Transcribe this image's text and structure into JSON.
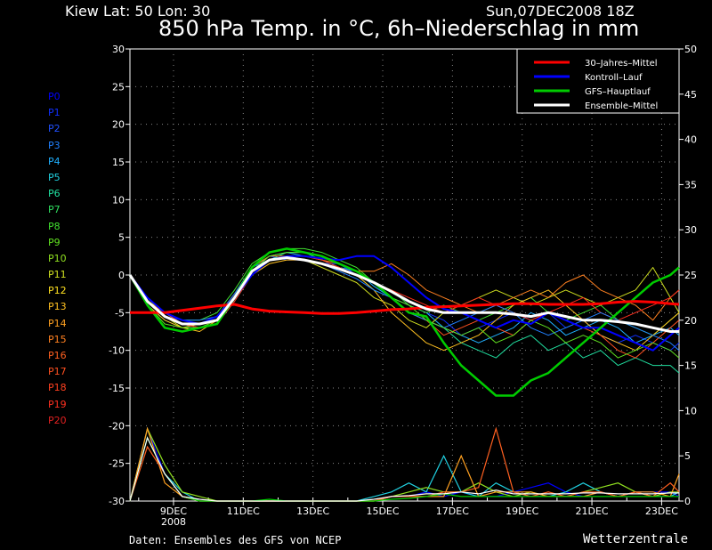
{
  "header": {
    "location": "Kiew   Lat: 50 Lon: 30",
    "date": "Sun,07DEC2008 18Z",
    "title": "850 hPa Temp. in °C, 6h–Niederschlag in mm"
  },
  "footer": {
    "source": "Daten: Ensembles des GFS von NCEP",
    "brand": "Wetterzentrale"
  },
  "members": [
    {
      "label": "P0",
      "color": "#0000ff"
    },
    {
      "label": "P1",
      "color": "#1030ff"
    },
    {
      "label": "P2",
      "color": "#2050ff"
    },
    {
      "label": "P3",
      "color": "#2080ff"
    },
    {
      "label": "P4",
      "color": "#20b0ff"
    },
    {
      "label": "P5",
      "color": "#20d0e0"
    },
    {
      "label": "P6",
      "color": "#20e0a0"
    },
    {
      "label": "P7",
      "color": "#30e060"
    },
    {
      "label": "P8",
      "color": "#40e030"
    },
    {
      "label": "P9",
      "color": "#60e020"
    },
    {
      "label": "P10",
      "color": "#90e020"
    },
    {
      "label": "P11",
      "color": "#d0e020"
    },
    {
      "label": "P12",
      "color": "#ffe020"
    },
    {
      "label": "P13",
      "color": "#ffc020"
    },
    {
      "label": "P14",
      "color": "#ffa020"
    },
    {
      "label": "P15",
      "color": "#ff8020"
    },
    {
      "label": "P16",
      "color": "#ff6020"
    },
    {
      "label": "P17",
      "color": "#ff5020"
    },
    {
      "label": "P18",
      "color": "#ff4020"
    },
    {
      "label": "P19",
      "color": "#ff3020"
    },
    {
      "label": "P20",
      "color": "#e02020"
    }
  ],
  "chart_data": {
    "type": "line",
    "title": "850 hPa Temp. in °C, 6h–Niederschlag in mm",
    "x_ticks": [
      "9DEC",
      "11DEC",
      "13DEC",
      "15DEC",
      "17DEC",
      "19DEC",
      "21DEC",
      "23DEC"
    ],
    "x_tick_year": "2008",
    "x_range_days": [
      7.75,
      23.5
    ],
    "y_left": {
      "ylim": [
        -30,
        30
      ],
      "ticks": [
        -30,
        -25,
        -20,
        -15,
        -10,
        -5,
        0,
        5,
        10,
        15,
        20,
        25,
        30
      ]
    },
    "y_right": {
      "ylim": [
        0,
        50
      ],
      "ticks": [
        0,
        5,
        10,
        15,
        20,
        25,
        30,
        35,
        40,
        45,
        50
      ]
    },
    "grid": true,
    "legend_position": "top-right",
    "legend": [
      {
        "name": "30–Jahres–Mittel",
        "color": "#ff0000"
      },
      {
        "name": "Kontroll–Lauf",
        "color": "#0000ff"
      },
      {
        "name": "GFS–Hauptlauf",
        "color": "#00cc00"
      },
      {
        "name": "Ensemble–Mittel",
        "color": "#ffffff"
      }
    ],
    "x": [
      7.75,
      8.25,
      8.75,
      9.25,
      9.75,
      10.25,
      10.75,
      11.25,
      11.75,
      12.25,
      12.75,
      13.25,
      13.75,
      14.25,
      14.75,
      15.25,
      15.75,
      16.25,
      16.75,
      17.25,
      17.75,
      18.25,
      18.75,
      19.25,
      19.75,
      20.25,
      20.75,
      21.25,
      21.75,
      22.25,
      22.75,
      23.25,
      23.5
    ],
    "series": [
      {
        "name": "30–Jahres–Mittel",
        "color": "#ff0000",
        "width": 3,
        "values": [
          -5,
          -5,
          -5,
          -4.7,
          -4.4,
          -4.1,
          -3.9,
          -4.5,
          -4.8,
          -4.9,
          -5,
          -5.1,
          -5.1,
          -5,
          -4.8,
          -4.6,
          -4.5,
          -4.3,
          -4.2,
          -4.1,
          -4,
          -3.9,
          -3.8,
          -3.8,
          -3.9,
          -3.9,
          -3.9,
          -3.8,
          -3.6,
          -3.5,
          -3.6,
          -3.8,
          -3.9
        ]
      },
      {
        "name": "Kontroll–Lauf",
        "color": "#0000ff",
        "width": 2,
        "values": [
          0,
          -3,
          -5,
          -6,
          -6.5,
          -5.5,
          -3,
          0,
          2,
          2.5,
          2.5,
          2.2,
          2,
          2.5,
          2.5,
          1,
          -1,
          -3,
          -4.5,
          -5,
          -6,
          -7,
          -6,
          -6.5,
          -5,
          -6,
          -7,
          -7,
          -8,
          -9,
          -10,
          -8,
          -7
        ]
      },
      {
        "name": "GFS–Hauptlauf",
        "color": "#00cc00",
        "width": 2.5,
        "values": [
          0,
          -4,
          -7,
          -7.5,
          -7,
          -6.5,
          -3,
          1,
          3,
          3.5,
          3,
          2.5,
          1.5,
          0.5,
          -1,
          -3,
          -5,
          -5.5,
          -9,
          -12,
          -14,
          -16,
          -16,
          -14,
          -13,
          -11,
          -9,
          -7,
          -5,
          -3,
          -1,
          0,
          1
        ]
      },
      {
        "name": "Ensemble–Mittel",
        "color": "#ffffff",
        "width": 3,
        "values": [
          0,
          -3.5,
          -5.5,
          -6.5,
          -6.5,
          -6,
          -3,
          0.5,
          2,
          2.3,
          2,
          1.5,
          0.8,
          0,
          -1,
          -2.2,
          -3.5,
          -4.5,
          -5,
          -5,
          -5,
          -5,
          -5.2,
          -5.5,
          -5,
          -5.5,
          -6,
          -6,
          -6.2,
          -6.5,
          -7,
          -7.5,
          -7.5
        ]
      },
      {
        "name": "P1",
        "color": "#1030ff",
        "width": 1,
        "values": [
          0,
          -3.5,
          -5.5,
          -6,
          -6.5,
          -5.5,
          -2.5,
          0.5,
          2.5,
          2,
          2,
          1.5,
          1.5,
          0,
          -1,
          -2,
          -4,
          -5,
          -6,
          -8,
          -7,
          -6,
          -5,
          -6,
          -5,
          -7,
          -6,
          -8,
          -9,
          -8,
          -9,
          -10,
          -9
        ]
      },
      {
        "name": "P4",
        "color": "#20b0ff",
        "width": 1,
        "values": [
          0,
          -3,
          -5,
          -6.5,
          -7,
          -6,
          -3,
          1,
          2.5,
          3,
          2.5,
          2,
          1,
          0.5,
          -1.5,
          -3,
          -4,
          -5,
          -7,
          -8,
          -9,
          -8,
          -7,
          -5,
          -6,
          -8,
          -7,
          -6,
          -7,
          -9,
          -8,
          -7,
          -8
        ]
      },
      {
        "name": "P6",
        "color": "#20e0a0",
        "width": 1,
        "values": [
          0,
          -4,
          -6,
          -7,
          -7,
          -6.5,
          -3.5,
          0,
          2,
          3,
          3,
          2,
          1,
          0,
          -2,
          -3,
          -5,
          -6,
          -7,
          -9,
          -10,
          -11,
          -9,
          -8,
          -10,
          -9,
          -11,
          -10,
          -12,
          -11,
          -12,
          -12,
          -13
        ]
      },
      {
        "name": "P8",
        "color": "#40e030",
        "width": 1,
        "values": [
          0,
          -3.5,
          -5,
          -6,
          -6,
          -5,
          -2,
          1.5,
          3,
          3.5,
          3.5,
          3,
          2,
          1,
          -1,
          -2,
          -4,
          -5,
          -4,
          -5,
          -6,
          -5,
          -4,
          -3,
          -5,
          -6,
          -5,
          -4,
          -6,
          -7,
          -8,
          -6,
          -5
        ]
      },
      {
        "name": "P11",
        "color": "#d0e020",
        "width": 1,
        "values": [
          0,
          -3,
          -5.5,
          -7,
          -6.5,
          -6,
          -3,
          0.5,
          2,
          2.5,
          2,
          1,
          0,
          -1,
          -3,
          -4,
          -6,
          -7,
          -5,
          -4,
          -3,
          -2,
          -3,
          -4,
          -3,
          -2,
          -3,
          -4,
          -3,
          -2,
          1,
          -3,
          -5
        ]
      },
      {
        "name": "P13",
        "color": "#ffc020",
        "width": 1,
        "values": [
          0,
          -4,
          -6,
          -7,
          -7.5,
          -6,
          -3,
          0,
          1.5,
          2,
          2,
          1.5,
          1,
          0,
          -2,
          -5,
          -7,
          -9,
          -10,
          -9,
          -8,
          -6,
          -4,
          -3,
          -2,
          -4,
          -6,
          -8,
          -9,
          -10,
          -8,
          -6,
          -5
        ]
      },
      {
        "name": "P15",
        "color": "#ff8020",
        "width": 1,
        "values": [
          0,
          -3.5,
          -5,
          -6,
          -6.5,
          -5.5,
          -2.5,
          1,
          2.5,
          2.5,
          2.5,
          2,
          1.5,
          0.5,
          0.5,
          1.5,
          0,
          -2,
          -3,
          -4,
          -5,
          -4,
          -3,
          -2,
          -3,
          -1,
          0,
          -2,
          -3,
          -4,
          -6,
          -3,
          -2
        ]
      },
      {
        "name": "P17",
        "color": "#ff5020",
        "width": 1,
        "values": [
          0,
          -3,
          -5,
          -6.5,
          -7,
          -6,
          -3,
          0,
          2,
          2.5,
          2,
          1.5,
          1,
          0,
          -1,
          -3,
          -5,
          -6,
          -8,
          -7,
          -6,
          -7,
          -8,
          -6,
          -5,
          -6,
          -7,
          -8,
          -10,
          -11,
          -9,
          -7,
          -6
        ]
      },
      {
        "name": "P19",
        "color": "#ff3020",
        "width": 1,
        "values": [
          0,
          -3.5,
          -5.5,
          -6.5,
          -7,
          -6.5,
          -3.5,
          0,
          2,
          2.5,
          2.5,
          2,
          1,
          0,
          -1,
          -2,
          -3,
          -4,
          -5,
          -4,
          -3,
          -4,
          -5,
          -6,
          -5,
          -4,
          -3,
          -5,
          -6,
          -5,
          -4,
          -3,
          -2
        ]
      },
      {
        "name": "P3",
        "color": "#2080ff",
        "width": 1,
        "values": [
          0,
          -3,
          -5,
          -6,
          -6,
          -5.5,
          -2.5,
          1,
          2,
          2.5,
          2,
          1.5,
          0.5,
          -0.5,
          -2,
          -3,
          -5,
          -6,
          -7,
          -6,
          -5,
          -4,
          -5,
          -7,
          -8,
          -7,
          -6,
          -5,
          -6,
          -7,
          -8,
          -9,
          -10
        ]
      },
      {
        "name": "P9",
        "color": "#60e020",
        "width": 1,
        "values": [
          0,
          -4,
          -6.5,
          -7,
          -7,
          -6,
          -3,
          0.5,
          2.5,
          3,
          3,
          2.5,
          1.5,
          0.5,
          -1,
          -3,
          -4,
          -6,
          -7,
          -8,
          -7,
          -9,
          -8,
          -6,
          -7,
          -9,
          -8,
          -9,
          -11,
          -10,
          -9,
          -10,
          -11
        ]
      }
    ],
    "precip_series": [
      {
        "name": "P0",
        "color": "#0000ff",
        "values": [
          0,
          8,
          3,
          0.5,
          0,
          0,
          0,
          0,
          0,
          0,
          0,
          0,
          0,
          0,
          0,
          0.5,
          0.5,
          1,
          0.5,
          1,
          0.5,
          0.5,
          1,
          1.5,
          2,
          1,
          0.5,
          1,
          0.5,
          1,
          1,
          1,
          0.5
        ]
      },
      {
        "name": "P5",
        "color": "#20d0e0",
        "values": [
          0,
          7,
          3,
          1,
          0,
          0,
          0,
          0,
          0,
          0,
          0,
          0,
          0,
          0,
          0.5,
          1,
          2,
          1,
          5,
          1,
          0.5,
          2,
          1,
          0.5,
          0.5,
          1,
          2,
          1,
          0.5,
          1,
          0.5,
          0.5,
          1
        ]
      },
      {
        "name": "P10",
        "color": "#90e020",
        "values": [
          0,
          8,
          4,
          1,
          0.5,
          0,
          0,
          0,
          0,
          0,
          0,
          0,
          0,
          0,
          0,
          0.5,
          1,
          1.5,
          1,
          1,
          2,
          1,
          0.5,
          1,
          0.5,
          0.5,
          1,
          1.5,
          2,
          1,
          0.5,
          1,
          1
        ]
      },
      {
        "name": "P14",
        "color": "#ffa020",
        "values": [
          0,
          8,
          2,
          0.5,
          0,
          0,
          0,
          0,
          0,
          0,
          0,
          0,
          0,
          0,
          0,
          0.5,
          0.5,
          0.5,
          0.5,
          5,
          0.5,
          1,
          1,
          1,
          0.5,
          0.5,
          0.5,
          1,
          0.5,
          1,
          1,
          0.5,
          3
        ]
      },
      {
        "name": "P16",
        "color": "#ff6020",
        "values": [
          0,
          6,
          3,
          0.5,
          0,
          0,
          0,
          0,
          0,
          0,
          0,
          0,
          0,
          0,
          0,
          0.5,
          0.5,
          0.5,
          1,
          1,
          1.5,
          8,
          1,
          0.5,
          1,
          0.5,
          1,
          1,
          0.5,
          1,
          0.5,
          2,
          1
        ]
      },
      {
        "name": "GFS–Hauptlauf",
        "color": "#00cc00",
        "values": [
          0,
          7,
          3,
          0.5,
          0,
          0,
          0,
          0,
          0.2,
          0,
          0,
          0,
          0,
          0,
          0,
          0.2,
          0.3,
          0.5,
          0.8,
          0.5,
          0.5,
          0.5,
          0.5,
          0.5,
          0.5,
          0.5,
          0.5,
          0.5,
          0.5,
          0.5,
          0.5,
          0.5,
          0.5
        ]
      },
      {
        "name": "Ensemble–Mittel",
        "color": "#ffffff",
        "values": [
          0,
          7,
          3,
          0.5,
          0.2,
          0,
          0,
          0,
          0,
          0,
          0,
          0,
          0,
          0,
          0.2,
          0.5,
          0.6,
          0.8,
          0.8,
          1,
          0.8,
          1.2,
          0.8,
          0.8,
          0.8,
          0.8,
          0.9,
          0.9,
          0.8,
          0.8,
          0.8,
          0.9,
          0.9
        ]
      }
    ]
  }
}
